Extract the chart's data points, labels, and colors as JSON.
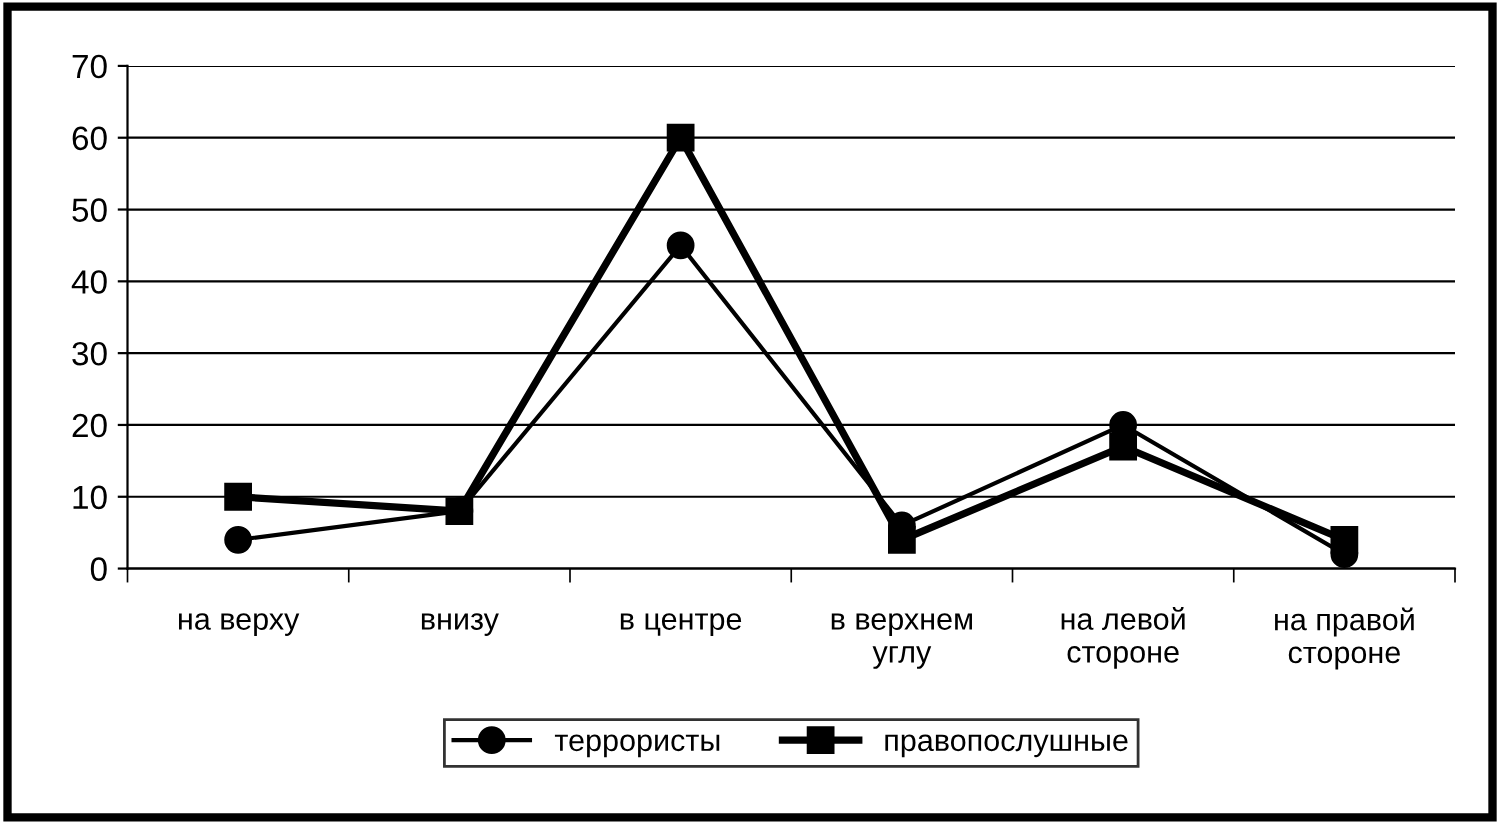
{
  "chart_data": {
    "type": "line",
    "categories": [
      "на верху",
      "внизу",
      "в центре",
      "в верхнем\nуглу",
      "на левой\nстороне",
      "на правой\nстороне"
    ],
    "series": [
      {
        "name": "террористы",
        "color": "#000000",
        "marker": "circle",
        "values": [
          4,
          8,
          45,
          6,
          20,
          2
        ]
      },
      {
        "name": "правопослушные",
        "color": "#000000",
        "marker": "square",
        "values": [
          10,
          8,
          60,
          4,
          17,
          4
        ]
      }
    ],
    "ylim": [
      0,
      70
    ],
    "yticks": [
      0,
      10,
      20,
      30,
      40,
      50,
      60,
      70
    ],
    "grid": "y",
    "legend": "bottom"
  }
}
